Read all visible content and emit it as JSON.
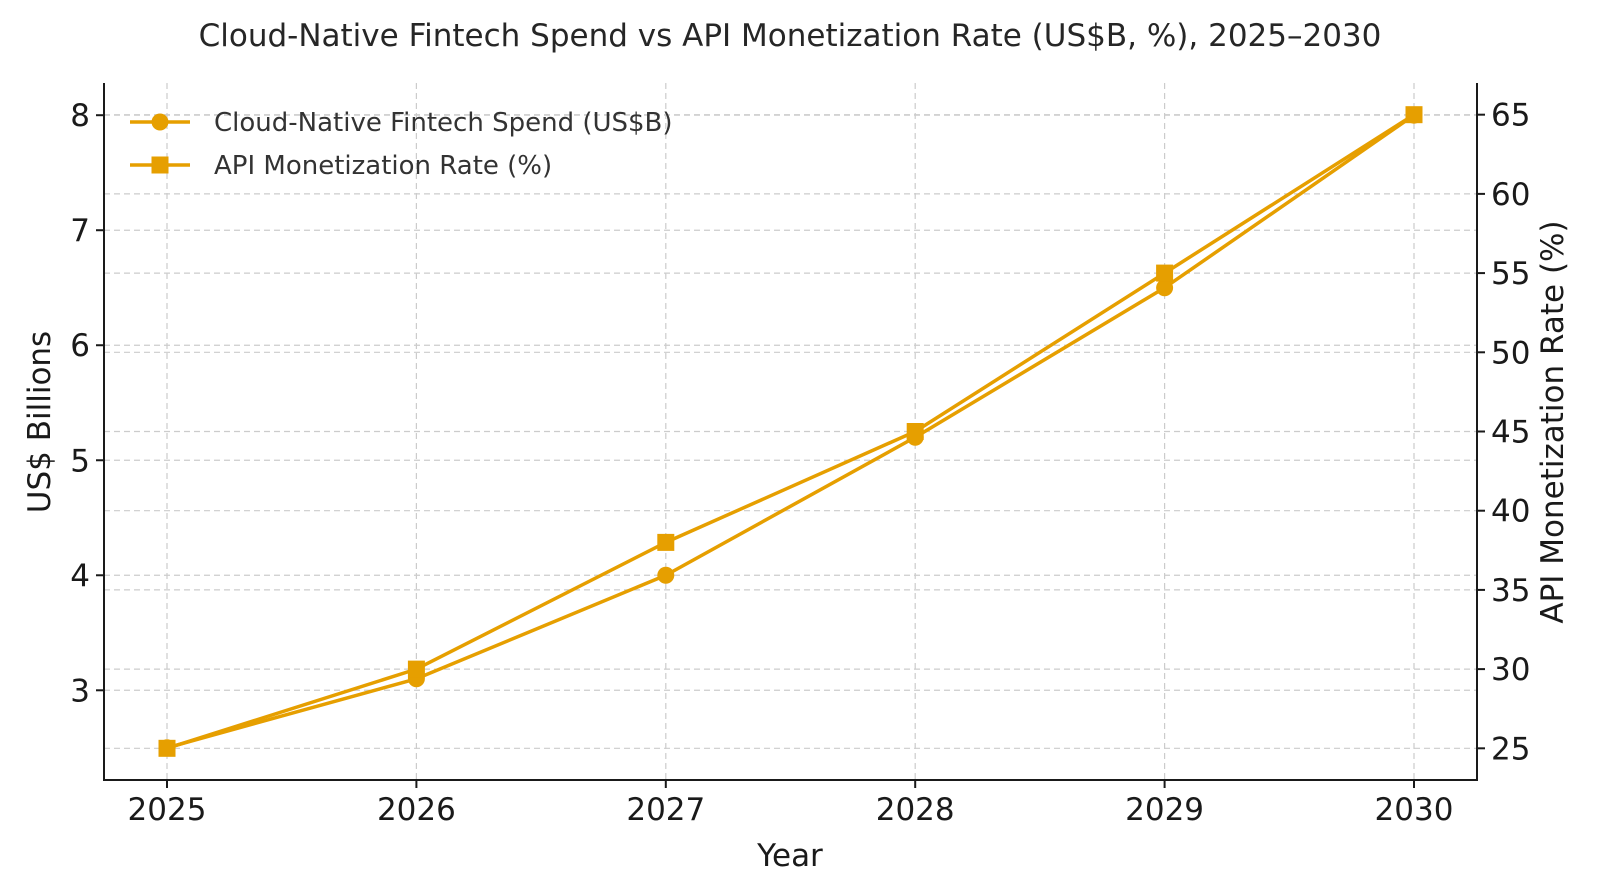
{
  "chart_data": {
    "type": "line",
    "title": "Cloud-Native Fintech Spend vs API Monetization Rate (US$B, %), 2025–2030",
    "xlabel": "Year",
    "ylabel": "US$ Billions",
    "y2label": "API Monetization Rate (%)",
    "categories": [
      "2025",
      "2026",
      "2027",
      "2028",
      "2029",
      "2030"
    ],
    "ylim": [
      2.22,
      8.28
    ],
    "y2lim": [
      23,
      67
    ],
    "yticks": [
      "3",
      "4",
      "5",
      "6",
      "7",
      "8"
    ],
    "y2ticks": [
      "25",
      "30",
      "35",
      "40",
      "45",
      "50",
      "55",
      "60",
      "65"
    ],
    "legend_position": "top-left",
    "series": [
      {
        "name": "Cloud-Native Fintech Spend (US$B)",
        "axis": "left",
        "marker": "circle",
        "color": "#E69F00",
        "values": [
          2.5,
          3.1,
          4.0,
          5.2,
          6.5,
          8.0
        ]
      },
      {
        "name": "API Monetization Rate (%)",
        "axis": "right",
        "marker": "square",
        "color": "#E69F00",
        "values": [
          25,
          30,
          38,
          45,
          55,
          65
        ]
      }
    ]
  }
}
